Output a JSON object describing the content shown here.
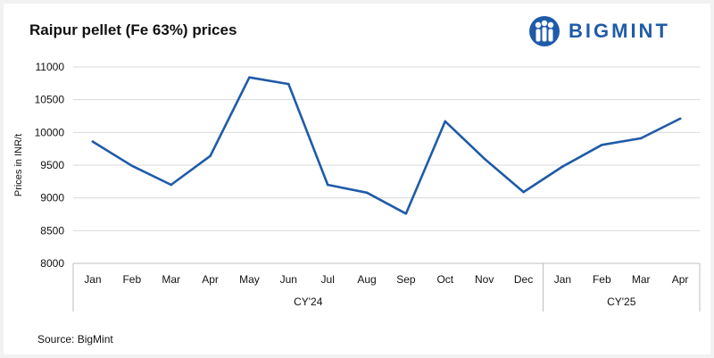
{
  "header": {
    "title": "Raipur pellet (Fe 63%) prices",
    "brand": "BIGMINT"
  },
  "footer": {
    "source": "Source: BigMint"
  },
  "colors": {
    "line": "#1f5ba8",
    "brand": "#1f5ba8",
    "grid": "#d9d9d9",
    "axis": "#bfbfbf"
  },
  "chart_data": {
    "type": "line",
    "title": "Raipur pellet (Fe 63%) prices",
    "ylabel": "Prices in INR/t",
    "ylim": [
      8000,
      11000
    ],
    "yticks": [
      "8000",
      "8500",
      "9000",
      "9500",
      "10000",
      "10500",
      "11000"
    ],
    "categories": [
      "Jan",
      "Feb",
      "Mar",
      "Apr",
      "May",
      "Jun",
      "Jul",
      "Aug",
      "Sep",
      "Oct",
      "Nov",
      "Dec",
      "Jan",
      "Feb",
      "Mar",
      "Apr"
    ],
    "groups": [
      {
        "label": "CY'24",
        "count": 12
      },
      {
        "label": "CY'25",
        "count": 4
      }
    ],
    "values": [
      9860,
      9490,
      9200,
      9640,
      10840,
      10740,
      9200,
      9080,
      8760,
      10170,
      9600,
      9090,
      9480,
      9810,
      9910,
      10210
    ],
    "grid": true,
    "legend": "none"
  }
}
